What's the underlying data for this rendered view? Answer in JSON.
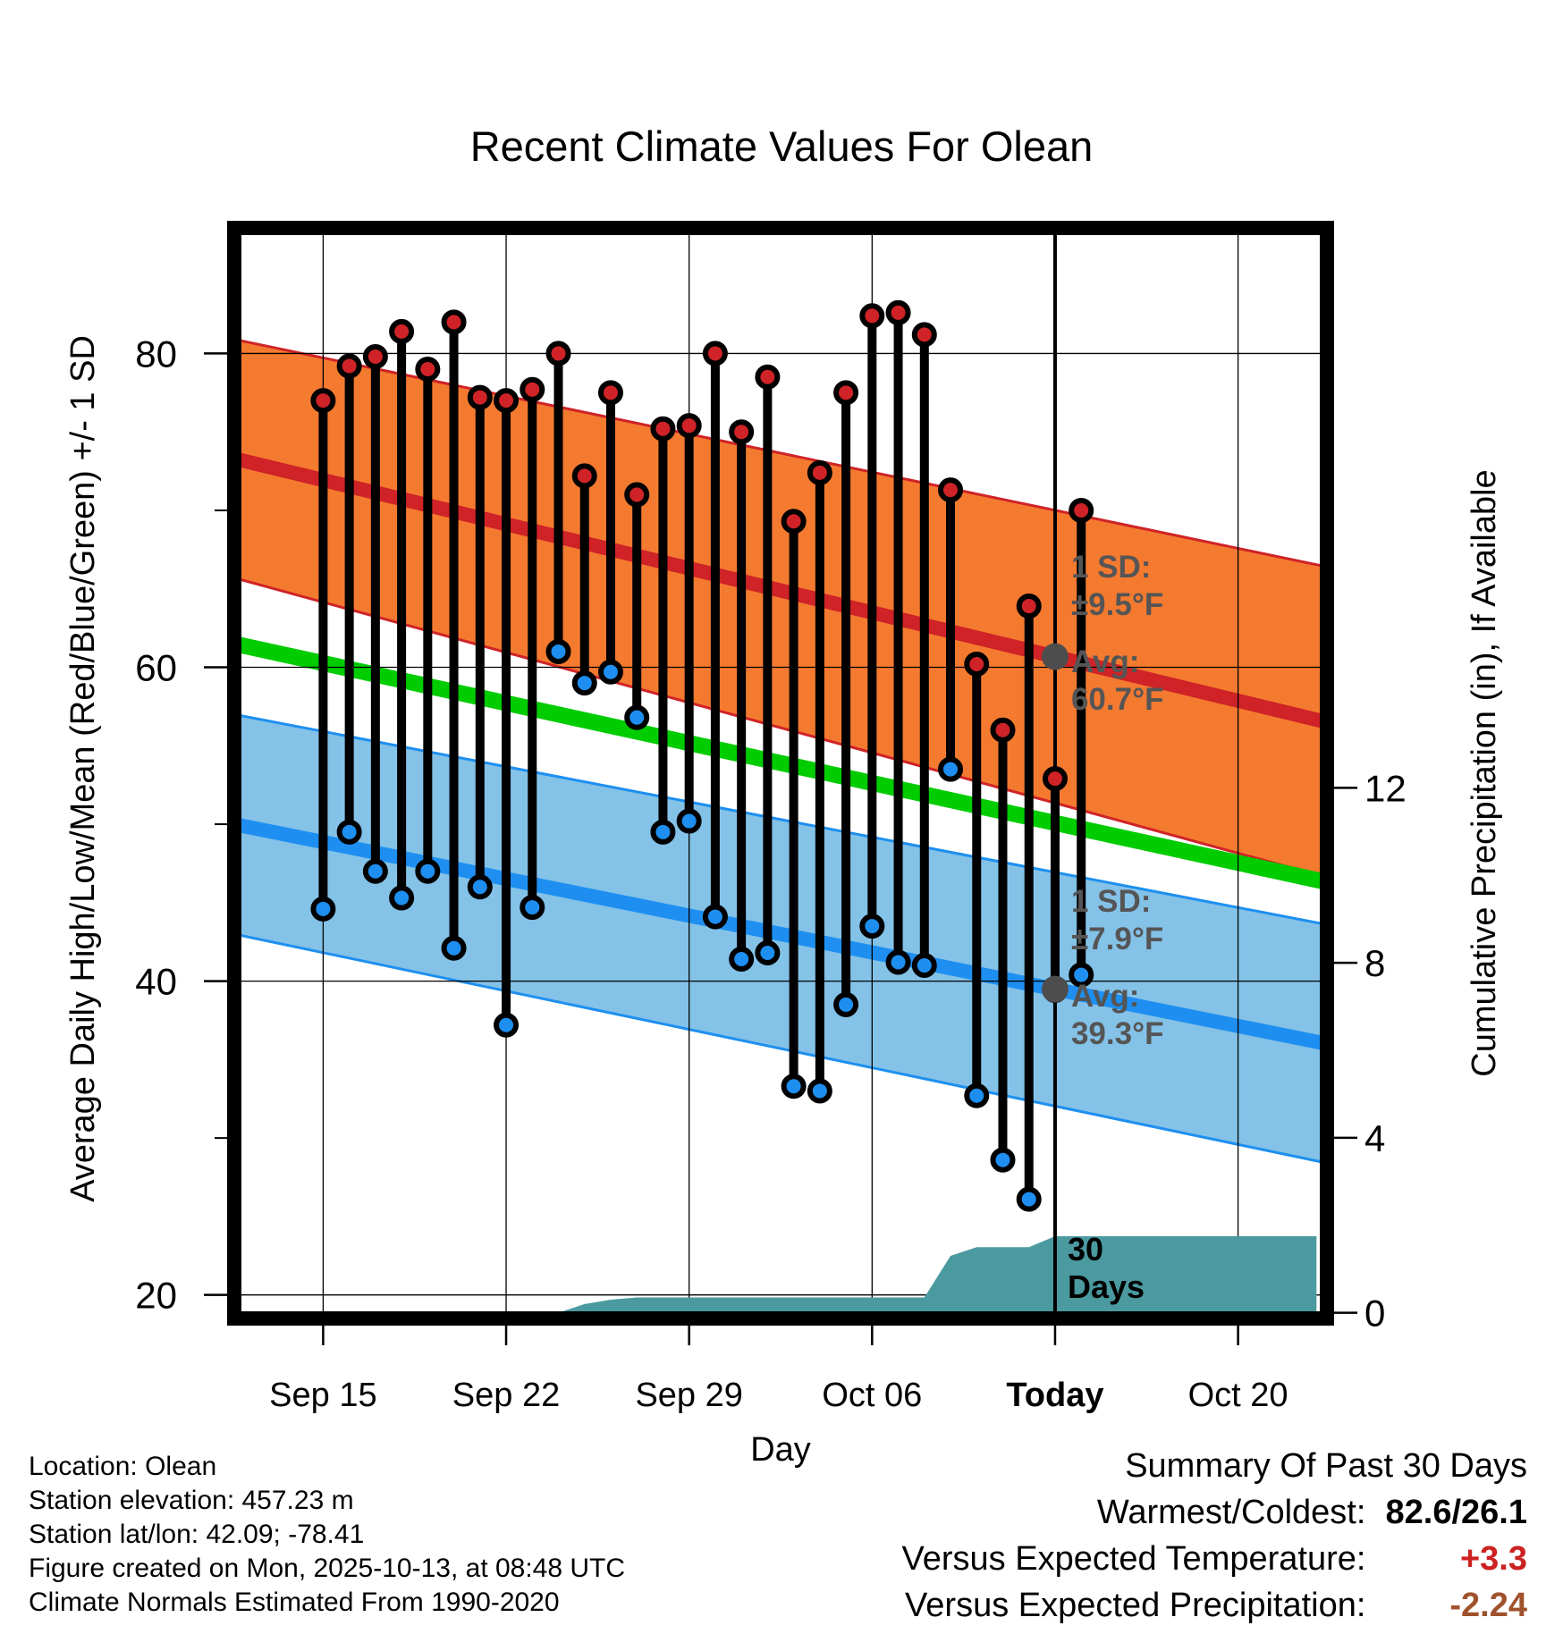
{
  "chart_data": {
    "type": "line",
    "title": "Recent Climate Values For Olean",
    "xlabel": "Day",
    "ylabel": "Average Daily High/Low/Mean (Red/Blue/Green) +/- 1 SD",
    "y2label": "Cumulative Precipitation (in), If Available",
    "ylim": [
      18.5,
      88
    ],
    "y2lim": [
      -0.13,
      24.8
    ],
    "xlim": [
      -3.4,
      38.4
    ],
    "grid": true,
    "y_ticks": [
      20,
      40,
      60,
      80
    ],
    "y2_ticks": [
      0,
      4,
      8,
      12
    ],
    "x_ticks": [
      {
        "day": 0,
        "label": "Sep 15"
      },
      {
        "day": 7,
        "label": "Sep 22"
      },
      {
        "day": 14,
        "label": "Sep 29"
      },
      {
        "day": 21,
        "label": "Oct 06"
      },
      {
        "day": 28,
        "label": "Today"
      },
      {
        "day": 35,
        "label": "Oct 20"
      }
    ],
    "today_day": 28,
    "period_label": [
      "30",
      "Days"
    ],
    "normal_high": {
      "start": 73.3,
      "end": 56.5,
      "sd_start": 7.6,
      "sd_end": 9.9
    },
    "normal_low": {
      "start": 50.0,
      "end": 36.0,
      "sd_start": 7.0,
      "sd_end": 7.6
    },
    "normal_mean": {
      "start": 61.5,
      "end": 46.3
    },
    "highs": [
      77.0,
      79.2,
      79.8,
      81.4,
      79.0,
      82.0,
      77.2,
      77.0,
      77.7,
      80.0,
      72.2,
      77.5,
      71.0,
      75.2,
      75.4,
      80.0,
      75.0,
      78.5,
      69.3,
      72.4,
      77.5,
      82.4,
      82.6,
      81.2,
      71.3,
      60.2,
      56.0,
      63.9,
      52.9,
      70.0
    ],
    "lows": [
      44.6,
      49.5,
      47.0,
      45.3,
      47.0,
      42.1,
      46.0,
      37.2,
      44.7,
      61.0,
      59.0,
      59.7,
      56.8,
      49.5,
      50.2,
      44.1,
      41.4,
      41.8,
      33.3,
      33.0,
      38.5,
      43.5,
      41.2,
      41.0,
      53.5,
      32.7,
      28.6,
      26.1,
      39.4,
      40.4
    ],
    "precip_cumulative": [
      0,
      0,
      0,
      0,
      0,
      0,
      0,
      0,
      0,
      0,
      0.2,
      0.3,
      0.35,
      0.35,
      0.35,
      0.35,
      0.35,
      0.35,
      0.35,
      0.35,
      0.35,
      0.35,
      0.35,
      0.35,
      1.3,
      1.5,
      1.5,
      1.5,
      1.75,
      1.75
    ],
    "precip_extend_to_day": 38,
    "annotations": {
      "high_sd": [
        "1 SD:",
        "±9.5°F"
      ],
      "high_avg": [
        "Avg:",
        "60.7°F"
      ],
      "low_sd": [
        "1 SD:",
        "±7.9°F"
      ],
      "low_avg": [
        "Avg:",
        "39.3°F"
      ]
    },
    "colors": {
      "high_band": "#f47a30",
      "high_line": "#cf2327",
      "low_band": "#84c2e8",
      "low_line": "#1e8ff0",
      "mean_line": "#00cc00",
      "precip": "#4a9aa0",
      "today_marker": "#4d4d4d",
      "annotation": "#555555"
    }
  },
  "station_info": [
    "Location: Olean",
    "Station elevation: 457.23 m",
    "Station lat/lon: 42.09; -78.41",
    "Figure created on Mon, 2025-10-13, at 08:48 UTC",
    "Climate Normals Estimated From 1990-2020"
  ],
  "summary": {
    "title": "Summary Of Past 30 Days",
    "warmest_coldest_label": "Warmest/Coldest:",
    "warmest_coldest_value": "82.6/26.1",
    "temp_label": "Versus Expected Temperature:",
    "temp_value": "+3.3",
    "temp_color": "#cc2222",
    "precip_label": "Versus Expected Precipitation:",
    "precip_value": "-2.24",
    "precip_color": "#a0522d"
  }
}
